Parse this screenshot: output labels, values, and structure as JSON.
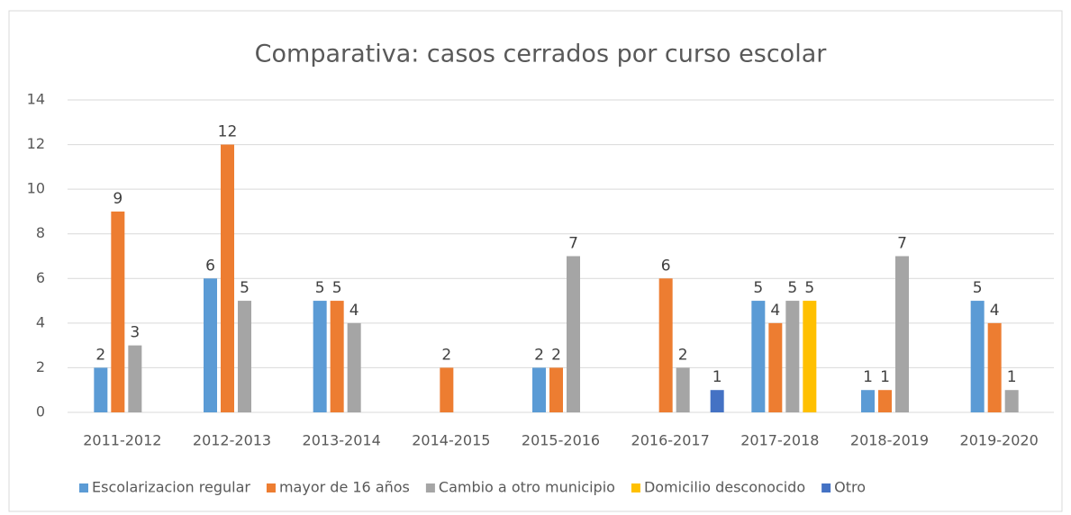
{
  "chart_data": {
    "type": "bar",
    "title": "Comparativa: casos cerrados por curso escolar",
    "categories": [
      "2011-2012",
      "2012-2013",
      "2013-2014",
      "2014-2015",
      "2015-2016",
      "2016-2017",
      "2017-2018",
      "2018-2019",
      "2019-2020"
    ],
    "series": [
      {
        "name": "Escolarizacion regular",
        "color": "#5b9bd5",
        "values": [
          2,
          6,
          5,
          null,
          2,
          null,
          5,
          1,
          5
        ]
      },
      {
        "name": "mayor de 16 años",
        "color": "#ed7d31",
        "values": [
          9,
          12,
          5,
          2,
          2,
          6,
          4,
          1,
          4
        ]
      },
      {
        "name": "Cambio a otro municipio",
        "color": "#a5a5a5",
        "values": [
          3,
          5,
          4,
          null,
          7,
          2,
          5,
          7,
          1
        ]
      },
      {
        "name": "Domicilio desconocido",
        "color": "#ffc000",
        "values": [
          null,
          null,
          null,
          null,
          null,
          null,
          5,
          null,
          null
        ]
      },
      {
        "name": "Otro",
        "color": "#4472c4",
        "values": [
          null,
          null,
          null,
          null,
          null,
          1,
          null,
          null,
          null
        ]
      }
    ],
    "ylim": [
      0,
      14
    ],
    "yticks": [
      0,
      2,
      4,
      6,
      8,
      10,
      12,
      14
    ],
    "grid": true,
    "legend": "bottom"
  }
}
